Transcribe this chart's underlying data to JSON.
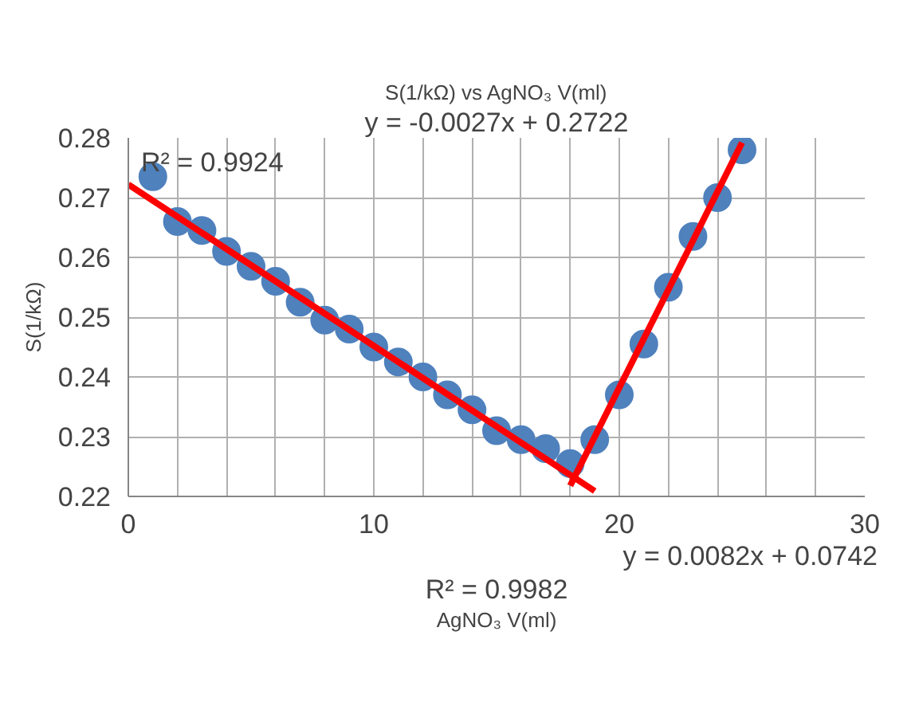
{
  "chart_data": {
    "type": "scatter",
    "title": "S(1/kΩ) vs AgNO₃ V(ml)",
    "xlabel": "AgNO₃ V(ml)",
    "ylabel": "S(1/kΩ)",
    "series": [
      {
        "color": "#4f81bd",
        "marker": "circle",
        "x": [
          1,
          2,
          3,
          4,
          5,
          6,
          7,
          8,
          9,
          10,
          11,
          12,
          13,
          14,
          15,
          16,
          17,
          18,
          19,
          20,
          21,
          22,
          23,
          24,
          25
        ],
        "values": [
          0.2735,
          0.266,
          0.2645,
          0.261,
          0.2585,
          0.256,
          0.2525,
          0.2495,
          0.248,
          0.245,
          0.2425,
          0.24,
          0.237,
          0.2345,
          0.231,
          0.2295,
          0.228,
          0.2255,
          0.2295,
          0.237,
          0.2455,
          0.255,
          0.2635,
          0.27,
          0.278
        ]
      },
      {
        "type": "line",
        "color": "#ff0000",
        "x": [
          0,
          19
        ],
        "values": [
          0.2722,
          0.2209
        ]
      },
      {
        "type": "line",
        "color": "#ff0000",
        "x": [
          18,
          25
        ],
        "values": [
          0.2218,
          0.2792
        ]
      }
    ],
    "annotations": [
      "y = -0.0027x + 0.2722",
      "R² = 0.9924",
      "y = 0.0082x + 0.0742",
      "R² = 0.9982"
    ],
    "xlim": [
      0,
      30
    ],
    "ylim": [
      0.22,
      0.28
    ],
    "xticks": [
      0,
      {
        "value": 2,
        "label": null
      },
      {
        "value": 4,
        "label": null
      },
      {
        "value": 6,
        "label": null
      },
      {
        "value": 8,
        "label": null
      },
      10,
      {
        "value": 12,
        "label": null
      },
      {
        "value": 14,
        "label": null
      },
      {
        "value": 16,
        "label": null
      },
      {
        "value": 18,
        "label": null
      },
      20,
      {
        "value": 22,
        "label": null
      },
      {
        "value": 24,
        "label": null
      },
      {
        "value": 26,
        "label": null
      },
      {
        "value": 28,
        "label": null
      },
      30
    ],
    "yticks": [
      0.22,
      0.23,
      0.24,
      0.25,
      0.26,
      0.27,
      0.28
    ],
    "grid": true
  }
}
